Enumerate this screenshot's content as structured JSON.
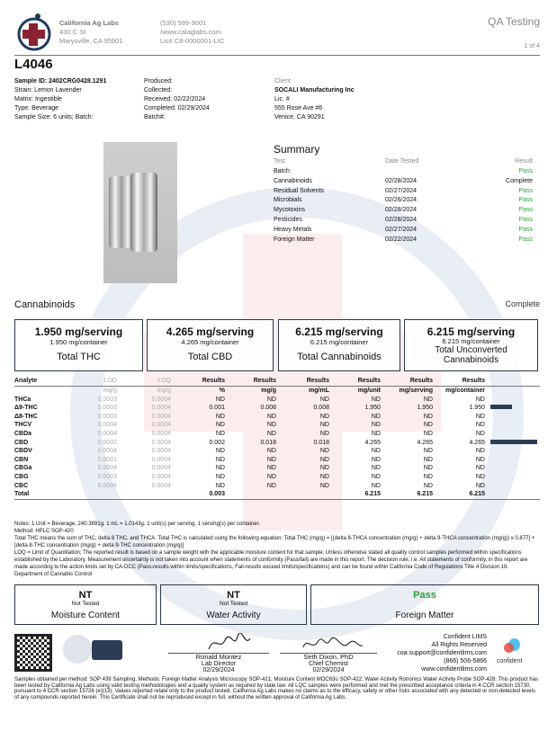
{
  "header": {
    "lab_name": "California Ag Labs",
    "address1": "430 C St",
    "address2": "Marysville, CA 95901",
    "phone": "(530) 599-9001",
    "website": "/www.calaglabs.com",
    "license": "Lic# C8-0000001-LIC",
    "title": "QA Testing",
    "page": "1 of 4"
  },
  "sample": {
    "code": "L4046",
    "id": "Sample ID: 2402CRG0428.1291",
    "strain": "Strain: Lemon Lavender",
    "matrix": "Matrix: Ingestible",
    "type": "Type: Beverage",
    "size": "Sample Size: 6 units; Batch:",
    "produced": "Produced:",
    "collected": "Collected:",
    "received": "Received: 02/22/2024",
    "completed": "Completed: 02/29/2024",
    "batch": "Batch#:"
  },
  "client": {
    "label": "Client",
    "name": "SOCALI Manufacturing Inc",
    "lic": "Lic. #",
    "address1": "555 Rose Ave #6",
    "address2": "Venice, CA 90291"
  },
  "summary": {
    "title": "Summary",
    "headers": [
      "Test",
      "Date Tested",
      "Result"
    ],
    "rows": [
      [
        "Batch",
        "",
        "Pass"
      ],
      [
        "Cannabinoids",
        "02/28/2024",
        "Complete"
      ],
      [
        "Residual Solvents",
        "02/27/2024",
        "Pass"
      ],
      [
        "Microbials",
        "02/26/2024",
        "Pass"
      ],
      [
        "Mycotoxins",
        "02/28/2024",
        "Pass"
      ],
      [
        "Pesticides",
        "02/28/2024",
        "Pass"
      ],
      [
        "Heavy Metals",
        "02/27/2024",
        "Pass"
      ],
      [
        "Foreign Matter",
        "02/22/2024",
        "Pass"
      ]
    ]
  },
  "cannabinoids": {
    "title": "Cannabinoids",
    "status": "Complete",
    "boxes": [
      {
        "serving": "1.950 mg/serving",
        "container": "1.950 mg/container",
        "label": "Total THC"
      },
      {
        "serving": "4.265 mg/serving",
        "container": "4.265 mg/container",
        "label": "Total CBD"
      },
      {
        "serving": "6.215 mg/serving",
        "container": "6.215 mg/container",
        "label": "Total Cannabinoids"
      },
      {
        "serving": "6.215 mg/serving",
        "container": "6.215 mg/container",
        "label": "Total Unconverted Cannabinoids"
      }
    ]
  },
  "table": {
    "headers": [
      "Analyte",
      "LOD",
      "LOQ",
      "Results",
      "Results",
      "Results",
      "Results",
      "Results",
      "Results"
    ],
    "units": [
      "",
      "mg/g",
      "mg/g",
      "%",
      "mg/g",
      "mg/mL",
      "mg/unit",
      "mg/serving",
      "mg/container"
    ],
    "rows": [
      [
        "THCa",
        "0.0003",
        "0.0004",
        "ND",
        "ND",
        "ND",
        "ND",
        "ND",
        "ND"
      ],
      [
        "Δ9-THC",
        "0.0003",
        "0.0004",
        "0.001",
        "0.008",
        "0.008",
        "1.950",
        "1.950",
        "1.950"
      ],
      [
        "Δ8-THC",
        "0.0003",
        "0.0004",
        "ND",
        "ND",
        "ND",
        "ND",
        "ND",
        "ND"
      ],
      [
        "THCV",
        "0.0004",
        "0.0004",
        "ND",
        "ND",
        "ND",
        "ND",
        "ND",
        "ND"
      ],
      [
        "CBDa",
        "0.0004",
        "0.0004",
        "ND",
        "ND",
        "ND",
        "ND",
        "ND",
        "ND"
      ],
      [
        "CBD",
        "0.0002",
        "0.0004",
        "0.002",
        "0.018",
        "0.018",
        "4.265",
        "4.265",
        "4.265"
      ],
      [
        "CBDV",
        "0.0004",
        "0.0004",
        "ND",
        "ND",
        "ND",
        "ND",
        "ND",
        "ND"
      ],
      [
        "CBN",
        "0.0001",
        "0.0004",
        "ND",
        "ND",
        "ND",
        "ND",
        "ND",
        "ND"
      ],
      [
        "CBGa",
        "0.0004",
        "0.0004",
        "ND",
        "ND",
        "ND",
        "ND",
        "ND",
        "ND"
      ],
      [
        "CBG",
        "0.0003",
        "0.0004",
        "ND",
        "ND",
        "ND",
        "ND",
        "ND",
        "ND"
      ],
      [
        "CBC",
        "0.0004",
        "0.0004",
        "ND",
        "ND",
        "ND",
        "ND",
        "ND",
        "ND"
      ]
    ],
    "total": [
      "Total",
      "",
      "",
      "0.003",
      "",
      "",
      "6.215",
      "6.215",
      "6.215"
    ],
    "bar_fraction_of_max": {
      "Δ9-THC": 0.457,
      "CBD": 1.0
    },
    "bar_color": "#2b3d55"
  },
  "notes": [
    "Notes: 1 Unit = Beverage, 240.3891g. 1 mL = 1.0143g. 1 unit(s) per serving. 1 serving(s) per container.",
    "Method: HPLC SOP-420",
    "Total THC means the sum of THC, delta 8 THC, and THCA. Total THC is calculated using the following equation: Total THC (mg/g) = [(delta 8-THCA concentration (mg/g) + delta 9-THCA concentration (mg/g)) x 0.877] + [delta 8-THC concentration (mg/g) + delta 9-THC concentration (mg/g)]",
    "LOQ = Limit of Quantitation; The reported result is based on a sample weight with the applicable moisture content for that sample; Unless otherwise stated all quality control samples performed within specifications established by the Laboratory. Measurement uncertainty is not taken into account when statements of conformity (Pass/fail) are made in this report.  The decision rule, i.e. All statements of conformity, in this report are made according to the action limits set by CA-DCC (Pass-results within limits/specifications, Fail-results exceed limits/specifications) and can be found within California Code of Regulations Title 4 Division 19. Department of Cannabis Control"
  ],
  "other_tests": [
    {
      "value": "NT",
      "sub": "Not Tested",
      "label": "Moisture Content"
    },
    {
      "value": "NT",
      "sub": "Not Tested",
      "label": "Water Activity"
    },
    {
      "value": "Pass",
      "sub": "",
      "label": "Foreign Matter"
    }
  ],
  "signatures": [
    {
      "name": "Ronald Montez",
      "role": "Lab Director",
      "date": "02/29/2024"
    },
    {
      "name": "Seth Dixon, PhD",
      "role": "Chief Chemist",
      "date": "02/29/2024"
    }
  ],
  "lims": {
    "name": "Confident LIMS",
    "rights": "All Rights Reserved",
    "email": "coa.support@confidentlims.com",
    "phone": "(866) 506-5866",
    "web": "www.confidentlims.com",
    "logo_text": "confident"
  },
  "disclaimer": "Samples obtained per method: SOP 439 Sampling, Methods: Foreign Matter Analysis Microscopy SOP-421; Moisture Content MOC63u SOP-422; Water Activity Rotronics Water Activity Probe SOP-428. This product has been tested by California Ag Labs using valid testing methodologies and a quality system as required by state law. All LQC samples were performed and met the prescribed acceptance criteria in 4 CCR section 15730, pursuant to 4 CCR section 15726 (e)(13). Values reported relate only to the product tested. California Ag Labs makes no claims as to the efficacy, safety or other risks associated with any detected or non-detected levels of any compounds reported herein. This Certificate shall not be reproduced except in full, without the written approval of California Ag Labs.",
  "colors": {
    "pass": "#2e9e3e",
    "box_border": "#2b3648",
    "logo_red": "#8b2233",
    "logo_blue": "#1f3a5f"
  }
}
